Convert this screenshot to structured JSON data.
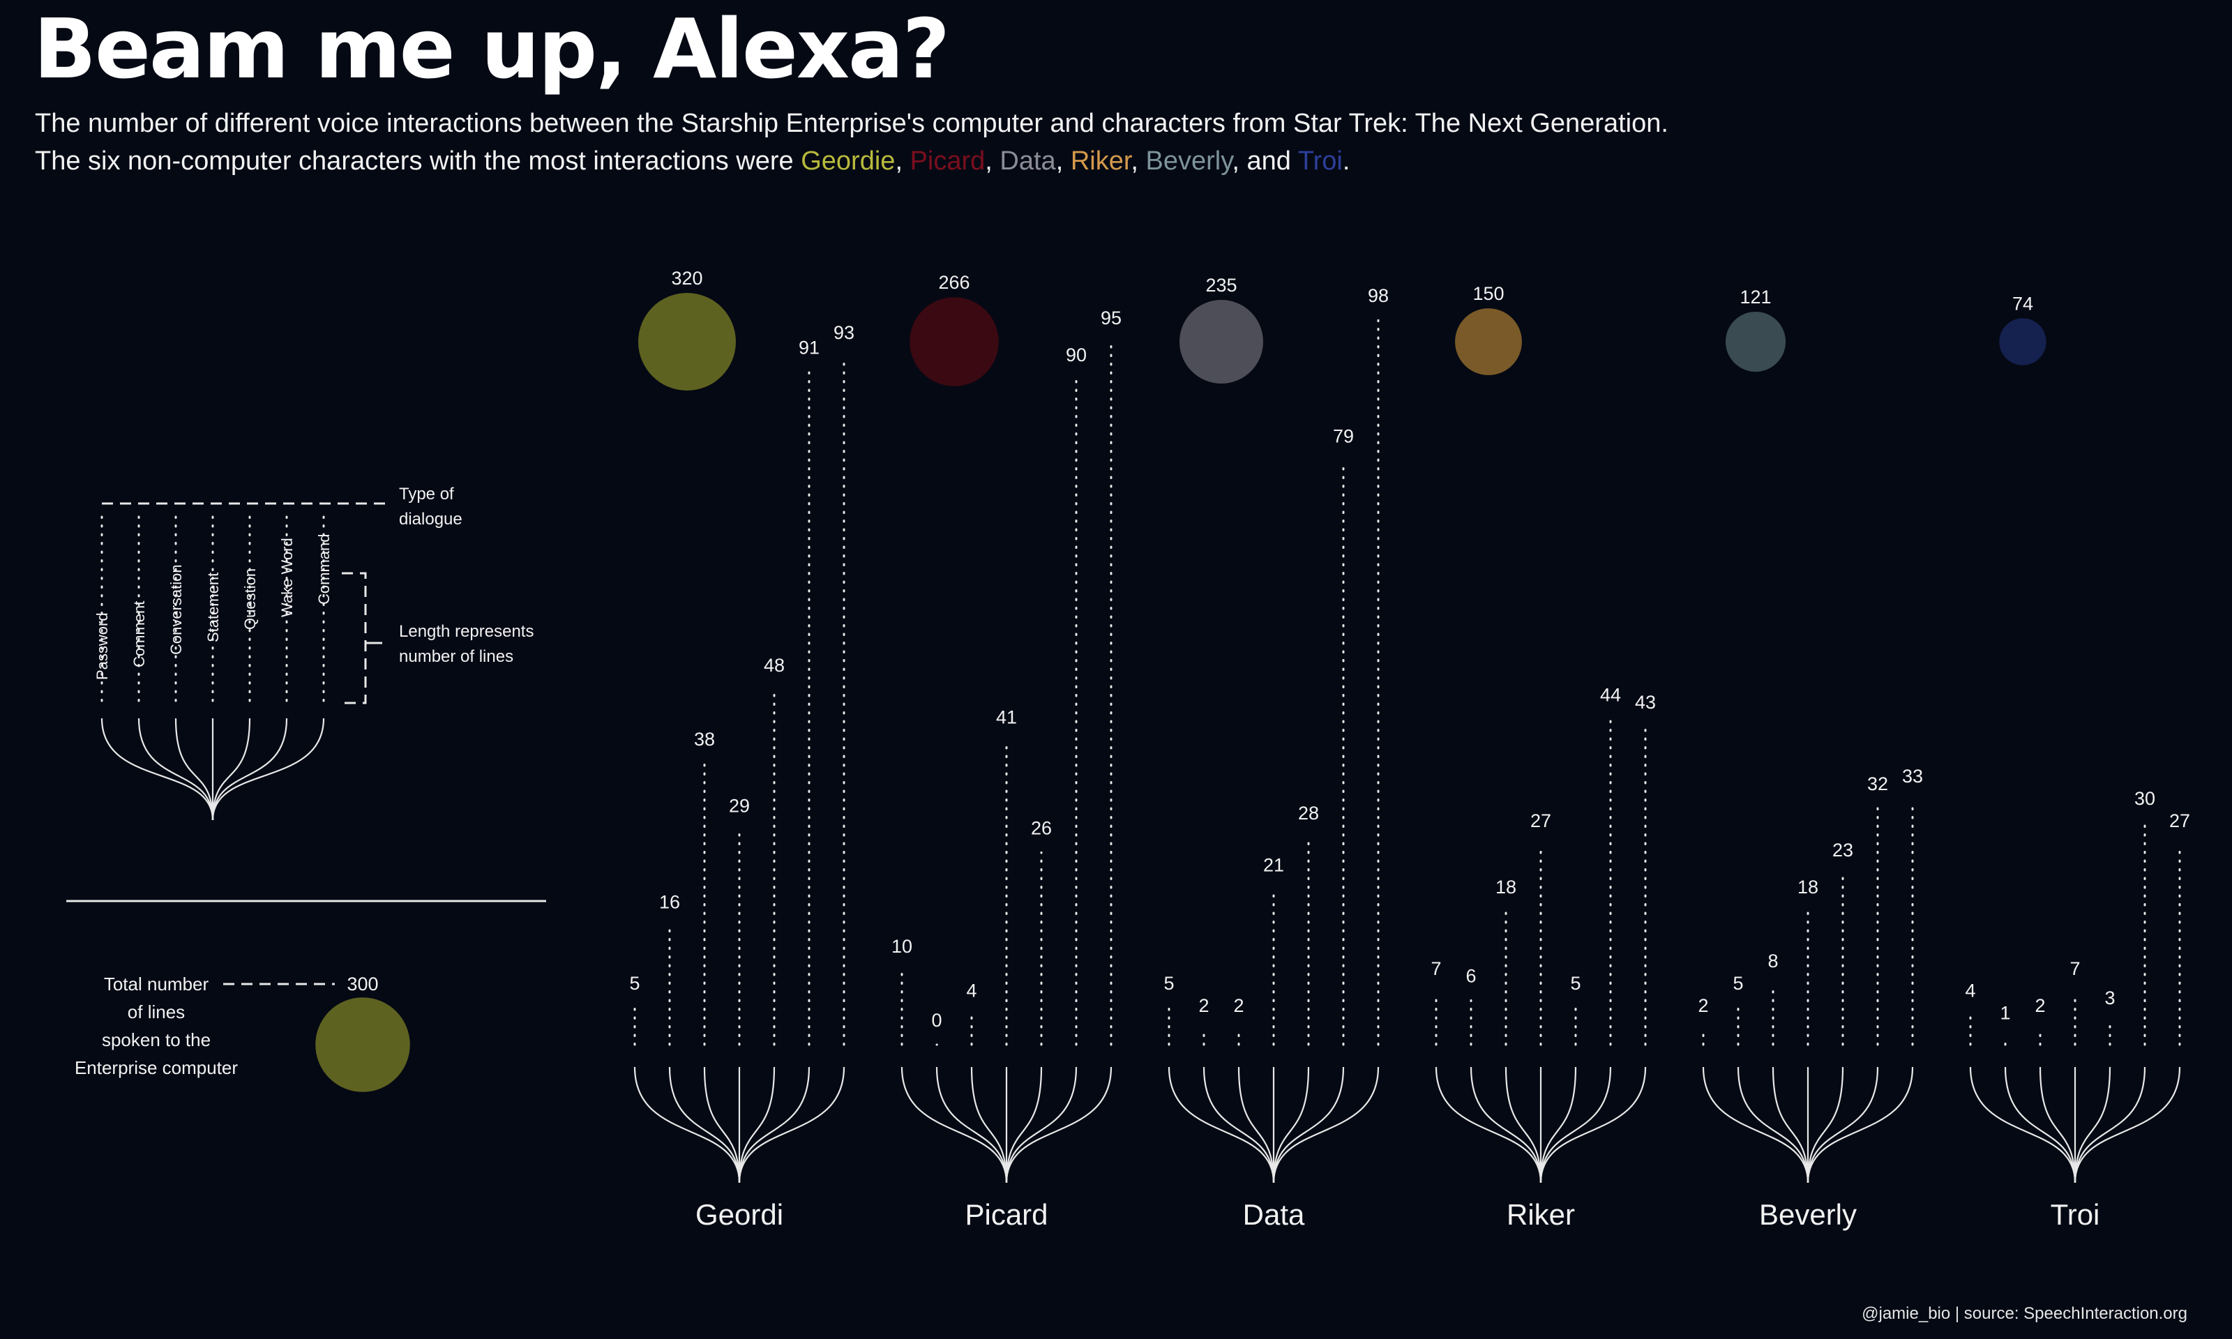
{
  "title": "Beam me up, Alexa?",
  "subtitle": {
    "line1": "The number of different voice interactions between the Starship Enterprise's computer and characters from Star Trek: The Next Generation.",
    "line2_prefix": "The six non-computer characters with the most interactions were ",
    "names": [
      "Geordie",
      "Picard",
      "Data",
      "Riker",
      "Beverly",
      "Troi"
    ],
    "sep": ", ",
    "sep_last": ", and ",
    "end": "."
  },
  "legend": {
    "type_label_1": "Type of",
    "type_label_2": "dialogue",
    "length_label_1": "Length represents",
    "length_label_2": "number of lines",
    "total_label": [
      "Total number",
      "of lines",
      "spoken to the",
      "Enterprise computer"
    ],
    "total_value": "300",
    "total_lines": 300,
    "color": "#5e6220"
  },
  "caption": "@jamie_bio | source:  SpeechInteraction.org",
  "chart_data": {
    "type": "bar",
    "categories": [
      "Password",
      "Comment",
      "Conversation",
      "Statement",
      "Question",
      "Wake Word",
      "Command"
    ],
    "characters": [
      {
        "name": "Geordi",
        "total": 320,
        "color": "#5e6220",
        "name_color": "#b8ba3c",
        "values": [
          5,
          16,
          38,
          29,
          48,
          91,
          93
        ]
      },
      {
        "name": "Picard",
        "total": 266,
        "color": "#3a0911",
        "name_color": "#7a0f1e",
        "values": [
          10,
          0,
          4,
          41,
          26,
          90,
          95
        ]
      },
      {
        "name": "Data",
        "total": 235,
        "color": "#4e4e58",
        "name_color": "#8c8c96",
        "values": [
          5,
          2,
          2,
          21,
          28,
          79,
          98
        ]
      },
      {
        "name": "Riker",
        "total": 150,
        "color": "#7a5a28",
        "name_color": "#d39a4c",
        "values": [
          7,
          6,
          18,
          27,
          5,
          44,
          43
        ]
      },
      {
        "name": "Beverly",
        "total": 121,
        "color": "#3a4b52",
        "name_color": "#7d939b",
        "values": [
          2,
          5,
          8,
          18,
          23,
          32,
          33
        ]
      },
      {
        "name": "Troi",
        "total": 74,
        "color": "#15214f",
        "name_color": "#2d3f9a",
        "values": [
          4,
          1,
          2,
          7,
          3,
          30,
          27
        ]
      }
    ]
  }
}
